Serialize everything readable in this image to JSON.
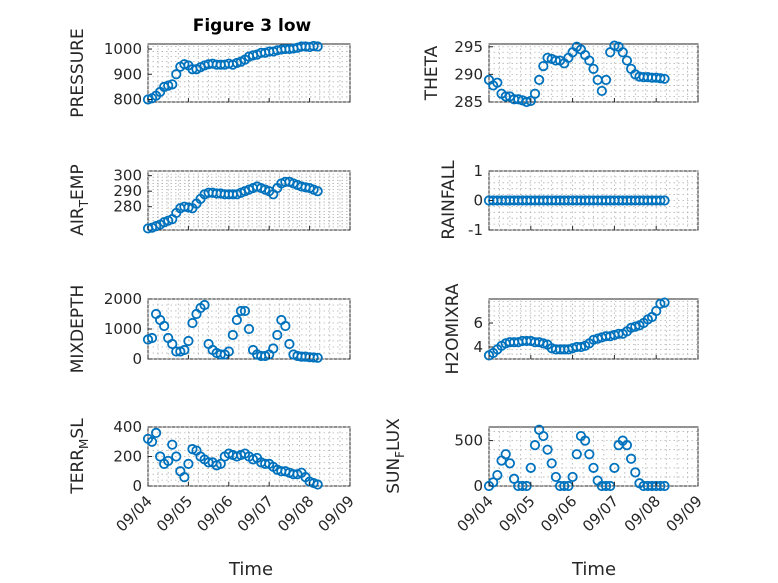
{
  "figure": {
    "title": "Figure 3 low",
    "xlabel": "Time",
    "marker_color": "#0072BD",
    "x_ticks": [
      "09/04",
      "09/05",
      "09/06",
      "09/07",
      "09/08",
      "09/09"
    ]
  },
  "chart_data": [
    {
      "type": "scatter",
      "id": "pressure",
      "ylabel": "PRESSURE",
      "xlim": [
        0,
        5
      ],
      "ylim": [
        790,
        1020
      ],
      "yticks": [
        800,
        900,
        1000
      ],
      "x": [
        0.0,
        0.1,
        0.2,
        0.3,
        0.4,
        0.5,
        0.6,
        0.7,
        0.8,
        0.9,
        1.0,
        1.1,
        1.2,
        1.3,
        1.4,
        1.5,
        1.6,
        1.7,
        1.8,
        1.9,
        2.0,
        2.1,
        2.2,
        2.3,
        2.4,
        2.5,
        2.6,
        2.7,
        2.8,
        2.9,
        3.0,
        3.1,
        3.2,
        3.3,
        3.4,
        3.5,
        3.6,
        3.7,
        3.8,
        3.9,
        4.0,
        4.1,
        4.2
      ],
      "y": [
        800,
        805,
        815,
        830,
        850,
        855,
        860,
        900,
        930,
        940,
        935,
        920,
        920,
        928,
        935,
        940,
        942,
        938,
        938,
        938,
        942,
        938,
        945,
        950,
        958,
        970,
        975,
        978,
        985,
        985,
        990,
        990,
        995,
        998,
        1000,
        1000,
        1002,
        1005,
        1010,
        1010,
        1008,
        1012,
        1010
      ]
    },
    {
      "type": "scatter",
      "id": "theta",
      "ylabel": "THETA",
      "xlim": [
        0,
        5
      ],
      "ylim": [
        285,
        295.5
      ],
      "yticks": [
        285,
        290,
        295
      ],
      "x": [
        0.0,
        0.1,
        0.2,
        0.3,
        0.4,
        0.5,
        0.6,
        0.7,
        0.8,
        0.9,
        1.0,
        1.1,
        1.2,
        1.3,
        1.4,
        1.5,
        1.6,
        1.7,
        1.8,
        1.9,
        2.0,
        2.1,
        2.2,
        2.3,
        2.4,
        2.5,
        2.6,
        2.7,
        2.8,
        2.9,
        3.0,
        3.1,
        3.2,
        3.3,
        3.4,
        3.5,
        3.6,
        3.7,
        3.8,
        3.9,
        4.0,
        4.1,
        4.2
      ],
      "y": [
        289.0,
        288.0,
        288.5,
        286.5,
        286.0,
        286.0,
        285.5,
        285.5,
        285.3,
        285.0,
        285.2,
        286.5,
        289.0,
        291.5,
        293.0,
        292.8,
        292.5,
        292.5,
        292.0,
        293.0,
        294.0,
        295.0,
        294.5,
        293.5,
        292.5,
        291.0,
        289.0,
        287.0,
        289.0,
        294.0,
        295.2,
        295.0,
        294.0,
        292.5,
        291.0,
        290.0,
        289.6,
        289.5,
        289.5,
        289.4,
        289.4,
        289.3,
        289.2
      ]
    },
    {
      "type": "scatter",
      "id": "air_temp",
      "ylabel": "AIR_TEMP",
      "xlim": [
        0,
        5
      ],
      "ylim": [
        265,
        303
      ],
      "yticks": [
        280,
        290,
        300
      ],
      "x": [
        0.0,
        0.1,
        0.2,
        0.3,
        0.4,
        0.5,
        0.6,
        0.7,
        0.8,
        0.9,
        1.0,
        1.1,
        1.2,
        1.3,
        1.4,
        1.5,
        1.6,
        1.7,
        1.8,
        1.9,
        2.0,
        2.1,
        2.2,
        2.3,
        2.4,
        2.5,
        2.6,
        2.7,
        2.8,
        2.9,
        3.0,
        3.1,
        3.2,
        3.3,
        3.4,
        3.5,
        3.6,
        3.7,
        3.8,
        3.9,
        4.0,
        4.1,
        4.2
      ],
      "y": [
        266,
        266.5,
        267.5,
        268.5,
        270,
        271,
        272,
        276,
        279,
        280,
        279.5,
        279,
        282,
        285,
        288,
        289,
        289,
        288.5,
        288.5,
        288,
        288,
        288,
        288,
        289,
        290,
        291,
        292,
        293,
        292,
        291,
        290,
        288,
        292,
        295,
        296,
        296,
        295,
        294,
        293,
        292.5,
        292,
        291,
        290
      ]
    },
    {
      "type": "scatter",
      "id": "rainfall",
      "ylabel": "RAINFALL",
      "xlim": [
        0,
        5
      ],
      "ylim": [
        -1,
        1
      ],
      "yticks": [
        -1,
        0,
        1
      ],
      "x": [
        0.0,
        0.1,
        0.2,
        0.3,
        0.4,
        0.5,
        0.6,
        0.7,
        0.8,
        0.9,
        1.0,
        1.1,
        1.2,
        1.3,
        1.4,
        1.5,
        1.6,
        1.7,
        1.8,
        1.9,
        2.0,
        2.1,
        2.2,
        2.3,
        2.4,
        2.5,
        2.6,
        2.7,
        2.8,
        2.9,
        3.0,
        3.1,
        3.2,
        3.3,
        3.4,
        3.5,
        3.6,
        3.7,
        3.8,
        3.9,
        4.0,
        4.1,
        4.2
      ],
      "y": [
        0,
        0,
        0,
        0,
        0,
        0,
        0,
        0,
        0,
        0,
        0,
        0,
        0,
        0,
        0,
        0,
        0,
        0,
        0,
        0,
        0,
        0,
        0,
        0,
        0,
        0,
        0,
        0,
        0,
        0,
        0,
        0,
        0,
        0,
        0,
        0,
        0,
        0,
        0,
        0,
        0,
        0,
        0
      ]
    },
    {
      "type": "scatter",
      "id": "mixdepth",
      "ylabel": "MIXDEPTH",
      "xlim": [
        0,
        5
      ],
      "ylim": [
        0,
        2000
      ],
      "yticks": [
        0,
        1000,
        2000
      ],
      "x": [
        0.0,
        0.1,
        0.2,
        0.3,
        0.4,
        0.5,
        0.6,
        0.7,
        0.8,
        0.9,
        1.0,
        1.1,
        1.2,
        1.3,
        1.4,
        1.5,
        1.6,
        1.7,
        1.8,
        1.9,
        2.0,
        2.1,
        2.2,
        2.3,
        2.4,
        2.5,
        2.6,
        2.7,
        2.8,
        2.9,
        3.0,
        3.1,
        3.2,
        3.3,
        3.4,
        3.5,
        3.6,
        3.7,
        3.8,
        3.9,
        4.0,
        4.1,
        4.2
      ],
      "y": [
        650,
        700,
        1500,
        1300,
        1100,
        700,
        500,
        250,
        250,
        300,
        600,
        1200,
        1500,
        1700,
        1800,
        500,
        300,
        200,
        150,
        150,
        250,
        800,
        1300,
        1600,
        1600,
        1000,
        300,
        150,
        100,
        100,
        150,
        350,
        800,
        1300,
        1100,
        500,
        150,
        100,
        80,
        80,
        60,
        50,
        40
      ]
    },
    {
      "type": "scatter",
      "id": "h2omixra",
      "ylabel": "H2OMIXRA",
      "xlim": [
        0,
        5
      ],
      "ylim": [
        3,
        8
      ],
      "yticks": [
        4,
        6
      ],
      "x": [
        0.0,
        0.1,
        0.2,
        0.3,
        0.4,
        0.5,
        0.6,
        0.7,
        0.8,
        0.9,
        1.0,
        1.1,
        1.2,
        1.3,
        1.4,
        1.5,
        1.6,
        1.7,
        1.8,
        1.9,
        2.0,
        2.1,
        2.2,
        2.3,
        2.4,
        2.5,
        2.6,
        2.7,
        2.8,
        2.9,
        3.0,
        3.1,
        3.2,
        3.3,
        3.4,
        3.5,
        3.6,
        3.7,
        3.8,
        3.9,
        4.0,
        4.1,
        4.2
      ],
      "y": [
        3.3,
        3.5,
        3.8,
        4.1,
        4.3,
        4.4,
        4.4,
        4.4,
        4.5,
        4.5,
        4.5,
        4.4,
        4.4,
        4.3,
        4.2,
        3.9,
        3.8,
        3.8,
        3.8,
        3.8,
        3.9,
        4.0,
        4.0,
        4.1,
        4.3,
        4.6,
        4.7,
        4.8,
        4.9,
        4.9,
        5.0,
        5.1,
        5.1,
        5.3,
        5.6,
        5.7,
        5.8,
        6.0,
        6.3,
        6.5,
        7.0,
        7.6,
        7.7
      ]
    },
    {
      "type": "scatter",
      "id": "terr_msl",
      "ylabel": "TERR_MSL",
      "xlim": [
        0,
        5
      ],
      "ylim": [
        0,
        400
      ],
      "yticks": [
        0,
        200,
        400
      ],
      "x": [
        0.0,
        0.1,
        0.2,
        0.3,
        0.4,
        0.5,
        0.6,
        0.7,
        0.8,
        0.9,
        1.0,
        1.1,
        1.2,
        1.3,
        1.4,
        1.5,
        1.6,
        1.7,
        1.8,
        1.9,
        2.0,
        2.1,
        2.2,
        2.3,
        2.4,
        2.5,
        2.6,
        2.7,
        2.8,
        2.9,
        3.0,
        3.1,
        3.2,
        3.3,
        3.4,
        3.5,
        3.6,
        3.7,
        3.8,
        3.9,
        4.0,
        4.1,
        4.2
      ],
      "y": [
        320,
        300,
        360,
        200,
        150,
        170,
        280,
        200,
        100,
        60,
        150,
        250,
        240,
        200,
        180,
        160,
        160,
        140,
        150,
        200,
        220,
        210,
        200,
        210,
        220,
        200,
        180,
        190,
        160,
        150,
        150,
        130,
        110,
        100,
        100,
        90,
        80,
        80,
        90,
        60,
        30,
        20,
        10
      ]
    },
    {
      "type": "scatter",
      "id": "sun_flux",
      "ylabel": "SUN_FLUX",
      "xlim": [
        0,
        5
      ],
      "ylim": [
        0,
        650
      ],
      "yticks": [
        0,
        500
      ],
      "x": [
        0.0,
        0.1,
        0.2,
        0.3,
        0.4,
        0.5,
        0.6,
        0.7,
        0.8,
        0.9,
        1.0,
        1.1,
        1.2,
        1.3,
        1.4,
        1.5,
        1.6,
        1.7,
        1.8,
        1.9,
        2.0,
        2.1,
        2.2,
        2.3,
        2.4,
        2.5,
        2.6,
        2.7,
        2.8,
        2.9,
        3.0,
        3.1,
        3.2,
        3.3,
        3.4,
        3.5,
        3.6,
        3.7,
        3.8,
        3.9,
        4.0,
        4.1,
        4.2
      ],
      "y": [
        0,
        40,
        120,
        280,
        350,
        250,
        80,
        0,
        0,
        0,
        200,
        450,
        620,
        550,
        400,
        250,
        100,
        0,
        0,
        0,
        100,
        350,
        550,
        500,
        350,
        200,
        60,
        0,
        0,
        0,
        200,
        450,
        500,
        450,
        300,
        150,
        30,
        0,
        0,
        0,
        0,
        0,
        0
      ]
    }
  ]
}
